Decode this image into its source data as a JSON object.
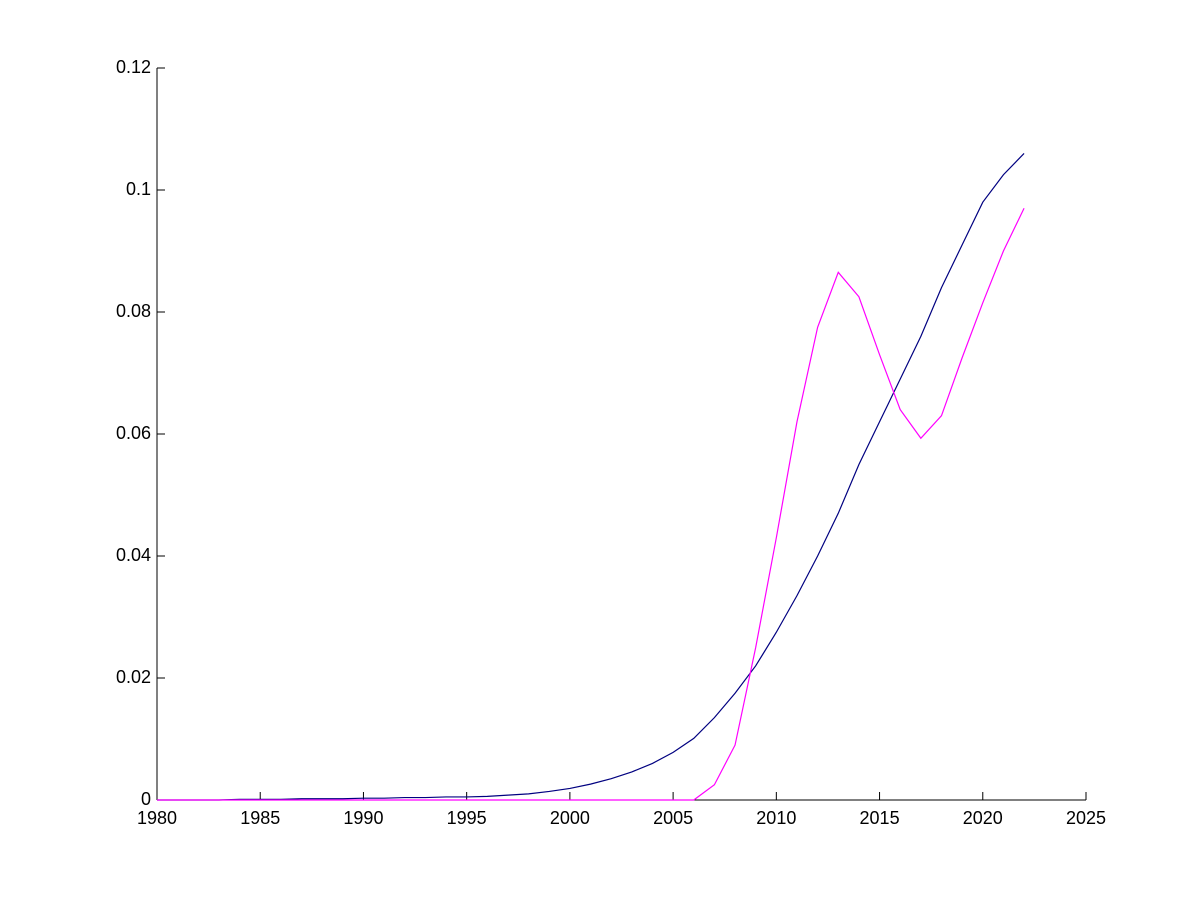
{
  "chart_data": {
    "type": "line",
    "x": [
      1980,
      1981,
      1982,
      1983,
      1984,
      1985,
      1986,
      1987,
      1988,
      1989,
      1990,
      1991,
      1992,
      1993,
      1994,
      1995,
      1996,
      1997,
      1998,
      1999,
      2000,
      2001,
      2002,
      2003,
      2004,
      2005,
      2006,
      2007,
      2008,
      2009,
      2010,
      2011,
      2012,
      2013,
      2014,
      2015,
      2016,
      2017,
      2018,
      2019,
      2020,
      2021,
      2022
    ],
    "series": [
      {
        "color": "#000080",
        "values": [
          0,
          0,
          0,
          0,
          0.0001,
          0.0001,
          0.0001,
          0.0002,
          0.0002,
          0.0002,
          0.0003,
          0.0003,
          0.0004,
          0.0004,
          0.0005,
          0.0005,
          0.0006,
          0.0008,
          0.001,
          0.0014,
          0.0019,
          0.0026,
          0.0035,
          0.0046,
          0.006,
          0.0078,
          0.0101,
          0.0135,
          0.0175,
          0.022,
          0.0275,
          0.0335,
          0.04,
          0.047,
          0.055,
          0.062,
          0.069,
          0.076,
          0.084,
          0.091,
          0.098,
          0.1025,
          0.106
        ]
      },
      {
        "color": "#ff00ff",
        "values": [
          0,
          0,
          0,
          0,
          0,
          0,
          0,
          0,
          0,
          0,
          0,
          0,
          0,
          0,
          0,
          0,
          0,
          0,
          0,
          0,
          0,
          0,
          0,
          0,
          0,
          0,
          0,
          0.0025,
          0.009,
          0.025,
          0.043,
          0.062,
          0.0775,
          0.0865,
          0.0825,
          0.073,
          0.064,
          0.0593,
          0.063,
          0.0725,
          0.0815,
          0.09,
          0.097
        ]
      }
    ],
    "xlim": [
      1980,
      2025
    ],
    "xticks": [
      1980,
      1985,
      1990,
      1995,
      2000,
      2005,
      2010,
      2015,
      2020,
      2025
    ],
    "ylim": [
      0,
      0.12
    ],
    "yticks": [
      0,
      0.02,
      0.04,
      0.06,
      0.08,
      0.1,
      0.12
    ],
    "grid": false
  }
}
